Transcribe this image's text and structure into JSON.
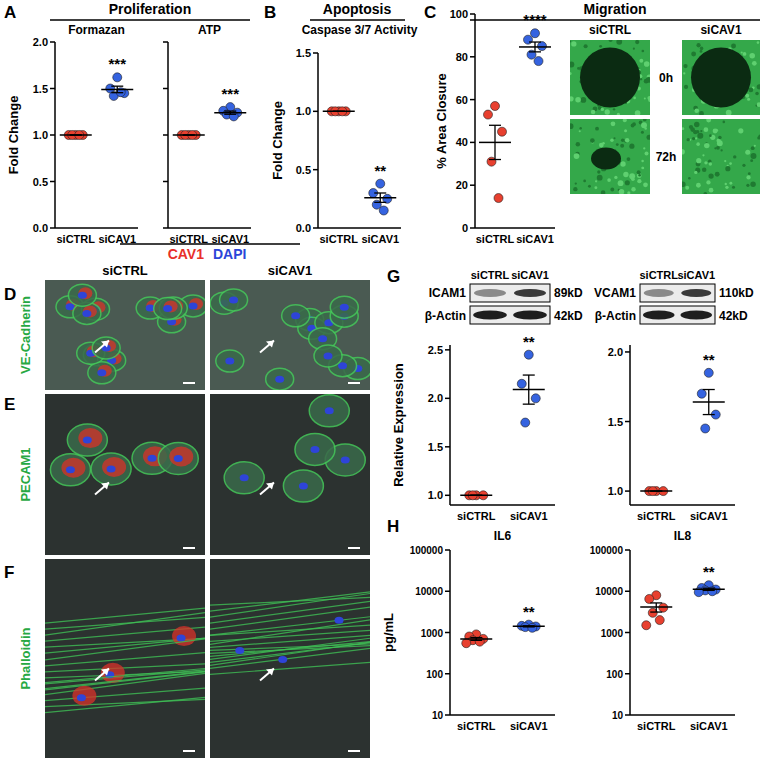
{
  "chart_data": [
    {
      "type": "dot",
      "title": "Formazan",
      "ylabel": "Fold Change",
      "categories": [
        "siCTRL",
        "siCAV1"
      ],
      "values": [
        [
          1,
          1,
          1,
          1,
          1
        ],
        [
          1.62,
          1.5,
          1.45,
          1.42,
          1.46
        ]
      ],
      "means": [
        1,
        1.49
      ],
      "errors": [
        0,
        0.035
      ],
      "colors": [
        "#e8402f",
        "#3563e0"
      ],
      "ylim": [
        0,
        2
      ],
      "yticks": [
        {
          "value": 0,
          "label": "0.0"
        },
        {
          "value": 0.5,
          "label": "0.5"
        },
        {
          "value": 1,
          "label": "1.0"
        },
        {
          "value": 1.5,
          "label": "1.5"
        },
        {
          "value": 2,
          "label": "2.0"
        }
      ],
      "annotations": [
        {
          "category": 1,
          "text": "***"
        }
      ]
    },
    {
      "type": "dot",
      "title": "ATP",
      "categories": [
        "siCTRL",
        "siCAV1"
      ],
      "values": [
        [
          1,
          1,
          1,
          1,
          1
        ],
        [
          1.3,
          1.26,
          1.24,
          1.22,
          1.2
        ]
      ],
      "means": [
        1,
        1.24
      ],
      "errors": [
        0,
        0.017
      ],
      "colors": [
        "#e8402f",
        "#3563e0"
      ],
      "ylim": [
        0,
        2
      ],
      "yticks": [
        0,
        0.5,
        1,
        1.5,
        2
      ],
      "tick_labels": "x",
      "annotations": [
        {
          "category": 1,
          "text": "***"
        }
      ]
    },
    {
      "type": "dot",
      "title": "Caspase 3/7 Activity",
      "ylabel": "Fold Change",
      "categories": [
        "siCTRL",
        "siCAV1"
      ],
      "values": [
        [
          1,
          1,
          1,
          1,
          1
        ],
        [
          0.38,
          0.3,
          0.25,
          0.2,
          0.15
        ]
      ],
      "means": [
        1,
        0.26
      ],
      "errors": [
        0,
        0.04
      ],
      "colors": [
        "#e8402f",
        "#3563e0"
      ],
      "ylim": [
        0,
        1.5
      ],
      "yticks": [
        {
          "value": 0,
          "label": "0.0"
        },
        {
          "value": 0.5,
          "label": "0.5"
        },
        {
          "value": 1,
          "label": "1.0"
        },
        {
          "value": 1.5,
          "label": "1.5"
        }
      ],
      "annotations": [
        {
          "category": 1,
          "text": "**"
        }
      ]
    },
    {
      "type": "dot",
      "ylabel": "% Area Closure",
      "categories": [
        "siCTRL",
        "siCAV1"
      ],
      "values": [
        [
          57,
          53,
          45,
          31,
          14
        ],
        [
          91,
          88,
          85,
          81,
          78
        ]
      ],
      "means": [
        40,
        84.6
      ],
      "errors": [
        8,
        2.3
      ],
      "colors": [
        "#e8402f",
        "#3563e0"
      ],
      "ylim": [
        0,
        100
      ],
      "yticks": [
        0,
        20,
        40,
        60,
        80,
        100
      ],
      "annotations": [
        {
          "category": 1,
          "text": "****"
        }
      ]
    },
    {
      "type": "dot",
      "ylabel": "Relative Expression",
      "categories": [
        "siCTRL",
        "siCAV1"
      ],
      "values": [
        [
          1,
          1,
          1,
          1
        ],
        [
          2.45,
          2.15,
          2.0,
          1.75
        ]
      ],
      "means": [
        1,
        2.09
      ],
      "errors": [
        0,
        0.15
      ],
      "colors": [
        "#e8402f",
        "#3563e0"
      ],
      "ylim": [
        0.9,
        2.55
      ],
      "yticks": [
        {
          "value": 1,
          "label": "1.0"
        },
        {
          "value": 1.5,
          "label": "1.5"
        },
        {
          "value": 2,
          "label": "2.0"
        },
        {
          "value": 2.5,
          "label": "2.5"
        }
      ],
      "annotations": [
        {
          "category": 1,
          "text": "**"
        }
      ]
    },
    {
      "type": "dot",
      "categories": [
        "siCTRL",
        "siCAV1"
      ],
      "values": [
        [
          1,
          1,
          1,
          1
        ],
        [
          1.85,
          1.7,
          1.55,
          1.45
        ]
      ],
      "means": [
        1,
        1.64
      ],
      "errors": [
        0,
        0.09
      ],
      "colors": [
        "#e8402f",
        "#3563e0"
      ],
      "ylim": [
        0.9,
        2.05
      ],
      "yticks": [
        {
          "value": 1,
          "label": "1.0"
        },
        {
          "value": 1.5,
          "label": "1.5"
        },
        {
          "value": 2,
          "label": "2.0"
        }
      ],
      "annotations": [
        {
          "category": 1,
          "text": "**"
        }
      ]
    },
    {
      "type": "dot",
      "title": "IL6",
      "ylabel": "pg/mL",
      "categories": [
        "siCTRL",
        "siCAV1"
      ],
      "values": [
        [
          900,
          800,
          700,
          650,
          600,
          550
        ],
        [
          1550,
          1450,
          1400,
          1350,
          1300
        ]
      ],
      "means": [
        700,
        1410
      ],
      "errors": [
        54,
        43
      ],
      "colors": [
        "#e8402f",
        "#3563e0"
      ],
      "ylim": [
        10,
        100000
      ],
      "yticks": [
        10,
        100,
        1000,
        10000,
        100000
      ],
      "log": "y",
      "annotations": [
        {
          "category": 1,
          "text": "**"
        }
      ]
    },
    {
      "type": "dot",
      "title": "IL8",
      "categories": [
        "siCTRL",
        "siCAV1"
      ],
      "values": [
        [
          8000,
          6500,
          4000,
          3000,
          2000,
          1500
        ],
        [
          14000,
          12000,
          11000,
          10500,
          10000,
          9500
        ]
      ],
      "means": [
        4170,
        11170
      ],
      "errors": [
        1040,
        680
      ],
      "colors": [
        "#e8402f",
        "#3563e0"
      ],
      "ylim": [
        10,
        100000
      ],
      "yticks": [
        10,
        100,
        1000,
        10000,
        100000
      ],
      "log": "y",
      "annotations": [
        {
          "category": 1,
          "text": "**"
        }
      ]
    }
  ],
  "figure": {
    "panel_letters": [
      "A",
      "B",
      "C",
      "D",
      "E",
      "F",
      "G",
      "H"
    ],
    "headers": [
      "Proliferation",
      "Apoptosis",
      "Migration"
    ],
    "migration_images": {
      "columns": [
        "siCTRL",
        "siCAV1"
      ],
      "rows": [
        "0h",
        "72h"
      ]
    },
    "stain_header": [
      "CAV1",
      "DAPI"
    ],
    "stain_columns": [
      "siCTRL",
      "siCAV1"
    ],
    "stain_rows": [
      "VE-Cadherin",
      "PECAM1",
      "Phalloidin"
    ],
    "blots": [
      {
        "target": "ICAM1",
        "target_size": "89kD",
        "control": "β-Actin",
        "control_size": "42kD",
        "lanes": [
          "siCTRL",
          "siCAV1"
        ]
      },
      {
        "target": "VCAM1",
        "target_size": "110kD",
        "control": "β-Actin",
        "control_size": "42kD",
        "lanes": [
          "siCTRL",
          "siCAV1"
        ]
      }
    ]
  }
}
